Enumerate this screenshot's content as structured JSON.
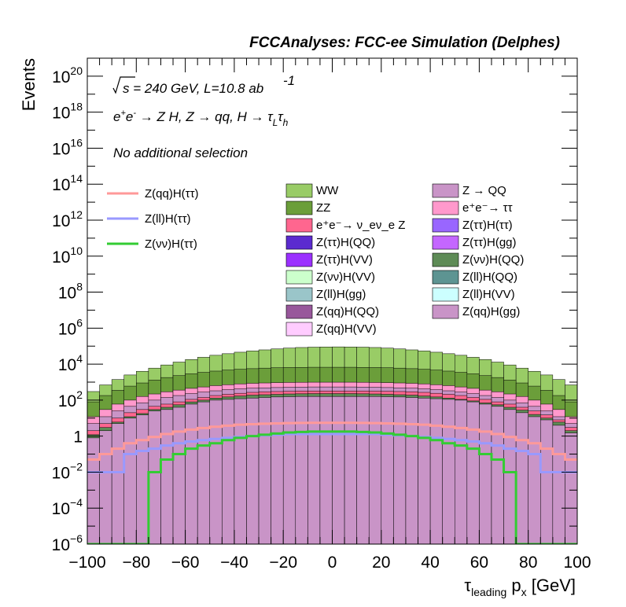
{
  "chart_data": {
    "type": "bar",
    "stacked": true,
    "title": "FCCAnalyses: FCC-ee Simulation (Delphes)",
    "annotations": {
      "line1": "√s = 240 GeV, L=10.8 ab⁻¹",
      "line2": "e⁺e⁻ → Z H, Z → qq, H → τ_L τ_h",
      "line3": "No additional selection"
    },
    "xlabel": "τ_leading p_x [GeV]",
    "ylabel": "Events",
    "xlim": [
      -100,
      100
    ],
    "ylim": [
      1e-06,
      1e+21
    ],
    "yscale": "log",
    "grid": false,
    "legend_position": "top",
    "x_ticks": [
      "−100",
      "−80",
      "−60",
      "−40",
      "−20",
      "0",
      "20",
      "40",
      "60",
      "80",
      "100"
    ],
    "y_ticks": [
      {
        "base": "10",
        "exp": "20",
        "value": 1e+20
      },
      {
        "base": "10",
        "exp": "18",
        "value": 1e+18
      },
      {
        "base": "10",
        "exp": "16",
        "value": 1e+16
      },
      {
        "base": "10",
        "exp": "14",
        "value": 100000000000000.0
      },
      {
        "base": "10",
        "exp": "12",
        "value": 1000000000000.0
      },
      {
        "base": "10",
        "exp": "10",
        "value": 10000000000.0
      },
      {
        "base": "10",
        "exp": "8",
        "value": 100000000.0
      },
      {
        "base": "10",
        "exp": "6",
        "value": 1000000.0
      },
      {
        "base": "10",
        "exp": "4",
        "value": 10000.0
      },
      {
        "base": "10",
        "exp": "2",
        "value": 100
      },
      {
        "base": "1",
        "exp": "",
        "value": 1
      },
      {
        "base": "10",
        "exp": "−2",
        "value": 0.01
      },
      {
        "base": "10",
        "exp": "−4",
        "value": 0.0001
      },
      {
        "base": "10",
        "exp": "−6",
        "value": 1e-06
      }
    ],
    "stack_series": [
      {
        "name": "Z(qq)H(gg)",
        "color": "#c994c7"
      },
      {
        "name": "Z(ll)H(gg)",
        "color": "#9ac5c9"
      },
      {
        "name": "Z(qq)H(QQ)",
        "color": "#98579b"
      },
      {
        "name": "Z(νν)H(QQ)",
        "color": "#5e8b56"
      },
      {
        "name": "e⁺e⁻→ ν_eν_e Z",
        "color": "#ff668f"
      },
      {
        "name": "Z(ll)H(QQ)",
        "color": "#5d9492"
      },
      {
        "name": "Z(νν)H(VV)",
        "color": "#ccffcc"
      },
      {
        "name": "Z(qq)H(VV)",
        "color": "#ffccff"
      },
      {
        "name": "Z(ll)H(VV)",
        "color": "#ccffff"
      },
      {
        "name": "Z(ττ)H(QQ)",
        "color": "#5b2bcf"
      },
      {
        "name": "Z(ττ)H(VV)",
        "color": "#9b30ff"
      },
      {
        "name": "Z(ττ)H(gg)",
        "color": "#c466ff"
      },
      {
        "name": "Z(ττ)H(ττ)",
        "color": "#9966ff"
      },
      {
        "name": "Z → QQ",
        "color": "#c994c7"
      },
      {
        "name": "e⁺e⁻→ ττ",
        "color": "#ff99cc"
      },
      {
        "name": "ZZ",
        "color": "#6b9e3a"
      },
      {
        "name": "WW",
        "color": "#99cc66"
      }
    ],
    "line_series": [
      {
        "name": "Z(qq)H(ττ)",
        "color": "#ff9999"
      },
      {
        "name": "Z(ll)H(ττ)",
        "color": "#9999ff"
      },
      {
        "name": "Z(νν)H(ττ)",
        "color": "#33cc33"
      }
    ],
    "legend_columns": [
      {
        "items": [
          {
            "name": "Z(qq)H(ττ)",
            "kind": "line",
            "color": "#ff9999"
          },
          {
            "name": "Z(ll)H(ττ)",
            "kind": "line",
            "color": "#9999ff"
          },
          {
            "name": "Z(νν)H(ττ)",
            "kind": "line",
            "color": "#33cc33"
          }
        ]
      },
      {
        "items": [
          {
            "name": "WW",
            "kind": "box",
            "color": "#99cc66"
          },
          {
            "name": "ZZ",
            "kind": "box",
            "color": "#6b9e3a"
          },
          {
            "name": "e⁺e⁻→ ν_eν_e Z",
            "kind": "box",
            "color": "#ff668f"
          },
          {
            "name": "Z(ττ)H(QQ)",
            "kind": "box",
            "color": "#5b2bcf"
          },
          {
            "name": "Z(ττ)H(VV)",
            "kind": "box",
            "color": "#9b30ff"
          },
          {
            "name": "Z(νν)H(VV)",
            "kind": "box",
            "color": "#ccffcc"
          },
          {
            "name": "Z(ll)H(gg)",
            "kind": "box",
            "color": "#9ac5c9"
          },
          {
            "name": "Z(qq)H(QQ)",
            "kind": "box",
            "color": "#98579b"
          },
          {
            "name": "Z(qq)H(VV)",
            "kind": "box",
            "color": "#ffccff"
          }
        ]
      },
      {
        "items": [
          {
            "name": "Z → QQ",
            "kind": "box",
            "color": "#c994c7"
          },
          {
            "name": "e⁺e⁻→ ττ",
            "kind": "box",
            "color": "#ff99cc"
          },
          {
            "name": "Z(ττ)H(ττ)",
            "kind": "box",
            "color": "#9966ff"
          },
          {
            "name": "Z(ττ)H(gg)",
            "kind": "box",
            "color": "#c466ff"
          },
          {
            "name": "Z(νν)H(QQ)",
            "kind": "box",
            "color": "#5e8b56"
          },
          {
            "name": "Z(ll)H(QQ)",
            "kind": "box",
            "color": "#5d9492"
          },
          {
            "name": "Z(ll)H(VV)",
            "kind": "box",
            "color": "#ccffff"
          },
          {
            "name": "Z(qq)H(gg)",
            "kind": "box",
            "color": "#c994c7"
          }
        ]
      }
    ],
    "bin_edges": [
      -100,
      -95,
      -90,
      -85,
      -80,
      -75,
      -70,
      -65,
      -60,
      -55,
      -50,
      -45,
      -40,
      -35,
      -30,
      -25,
      -20,
      -15,
      -10,
      -5,
      0,
      5,
      10,
      15,
      20,
      25,
      30,
      35,
      40,
      45,
      50,
      55,
      60,
      65,
      70,
      75,
      80,
      85,
      90,
      95,
      100
    ],
    "stack_tops": [
      {
        "name": "Z(qq)H(gg)",
        "values": [
          0.8,
          2,
          5,
          10,
          15,
          25,
          30,
          40,
          60,
          80,
          100,
          110,
          120,
          130,
          140,
          150,
          155,
          160,
          160,
          160,
          160,
          160,
          160,
          160,
          155,
          150,
          140,
          130,
          120,
          110,
          100,
          80,
          60,
          45,
          30,
          20,
          12,
          8,
          4,
          1.5
        ]
      },
      {
        "name": "Z(νν)H(QQ)",
        "values": [
          1.2,
          3,
          6,
          12,
          18,
          30,
          40,
          55,
          80,
          100,
          130,
          150,
          170,
          190,
          200,
          210,
          220,
          225,
          230,
          230,
          230,
          230,
          225,
          220,
          210,
          200,
          190,
          170,
          150,
          130,
          110,
          90,
          70,
          55,
          40,
          28,
          16,
          10,
          6,
          2
        ]
      },
      {
        "name": "e⁺e⁻→ ν_eν_e Z",
        "values": [
          2,
          5,
          10,
          20,
          30,
          45,
          60,
          80,
          110,
          140,
          180,
          210,
          240,
          270,
          290,
          300,
          310,
          320,
          320,
          320,
          320,
          320,
          320,
          315,
          310,
          300,
          290,
          270,
          240,
          210,
          180,
          140,
          110,
          80,
          60,
          40,
          25,
          15,
          8,
          3
        ]
      },
      {
        "name": "Z → QQ",
        "values": [
          5,
          12,
          25,
          45,
          70,
          100,
          140,
          180,
          230,
          280,
          330,
          380,
          420,
          460,
          480,
          500,
          520,
          530,
          540,
          540,
          540,
          540,
          530,
          520,
          500,
          480,
          460,
          420,
          380,
          330,
          280,
          230,
          180,
          140,
          100,
          70,
          45,
          25,
          12,
          5
        ]
      },
      {
        "name": "e⁺e⁻→ ττ",
        "values": [
          12,
          30,
          60,
          100,
          160,
          220,
          290,
          360,
          450,
          540,
          640,
          720,
          800,
          860,
          900,
          940,
          960,
          980,
          990,
          990,
          990,
          990,
          980,
          960,
          940,
          900,
          860,
          800,
          720,
          640,
          540,
          450,
          360,
          290,
          220,
          160,
          100,
          60,
          30,
          12
        ]
      },
      {
        "name": "ZZ",
        "values": [
          80,
          180,
          350,
          600,
          900,
          1300,
          1800,
          2300,
          2900,
          3500,
          4100,
          4700,
          5200,
          5600,
          6000,
          6300,
          6500,
          6600,
          6700,
          6700,
          6700,
          6700,
          6600,
          6500,
          6300,
          6000,
          5600,
          5200,
          4700,
          4100,
          3500,
          2900,
          2300,
          1800,
          1300,
          900,
          600,
          350,
          180,
          80
        ]
      },
      {
        "name": "WW",
        "values": [
          300,
          700,
          1400,
          2500,
          4000,
          6000,
          9000,
          13000,
          18000,
          24000,
          31000,
          38000,
          46000,
          54000,
          62000,
          70000,
          78000,
          84000,
          88000,
          90000,
          91000,
          90000,
          88000,
          84000,
          78000,
          70000,
          62000,
          54000,
          46000,
          38000,
          31000,
          24000,
          18000,
          13000,
          9000,
          6000,
          4000,
          2500,
          1400,
          700
        ]
      }
    ],
    "line_values": [
      {
        "name": "Z(qq)H(ττ)",
        "values": [
          0.05,
          0.1,
          0.2,
          0.4,
          0.6,
          0.9,
          1.3,
          1.8,
          2.3,
          2.8,
          3.3,
          3.8,
          4.3,
          4.6,
          4.9,
          5.1,
          5.3,
          5.4,
          5.5,
          5.5,
          5.5,
          5.5,
          5.4,
          5.3,
          5.1,
          4.9,
          4.6,
          4.3,
          3.8,
          3.3,
          2.8,
          2.3,
          1.8,
          1.3,
          0.9,
          0.6,
          0.4,
          0.2,
          0.1,
          0.05
        ]
      },
      {
        "name": "Z(ll)H(ττ)",
        "values": [
          0.01,
          0.01,
          0.01,
          0.1,
          0.15,
          0.2,
          0.3,
          0.4,
          0.5,
          0.6,
          0.7,
          0.8,
          0.9,
          1.0,
          1.1,
          1.2,
          1.3,
          1.3,
          1.3,
          1.3,
          1.3,
          1.3,
          1.3,
          1.3,
          1.2,
          1.1,
          1.0,
          0.9,
          0.8,
          0.7,
          0.6,
          0.5,
          0.4,
          0.3,
          0.2,
          0.15,
          0.1,
          0.01,
          0.01,
          0.01
        ]
      },
      {
        "name": "Z(νν)H(ττ)",
        "values": [
          1e-06,
          1e-06,
          1e-06,
          1e-06,
          1e-06,
          0.01,
          0.05,
          0.1,
          0.2,
          0.3,
          0.4,
          0.6,
          0.8,
          1.0,
          1.2,
          1.4,
          1.6,
          1.7,
          1.8,
          1.8,
          1.8,
          1.8,
          1.7,
          1.6,
          1.4,
          1.2,
          1.0,
          0.8,
          0.6,
          0.4,
          0.3,
          0.2,
          0.1,
          0.05,
          0.01,
          1e-06,
          1e-06,
          1e-06,
          1e-06,
          1e-06
        ]
      }
    ]
  }
}
